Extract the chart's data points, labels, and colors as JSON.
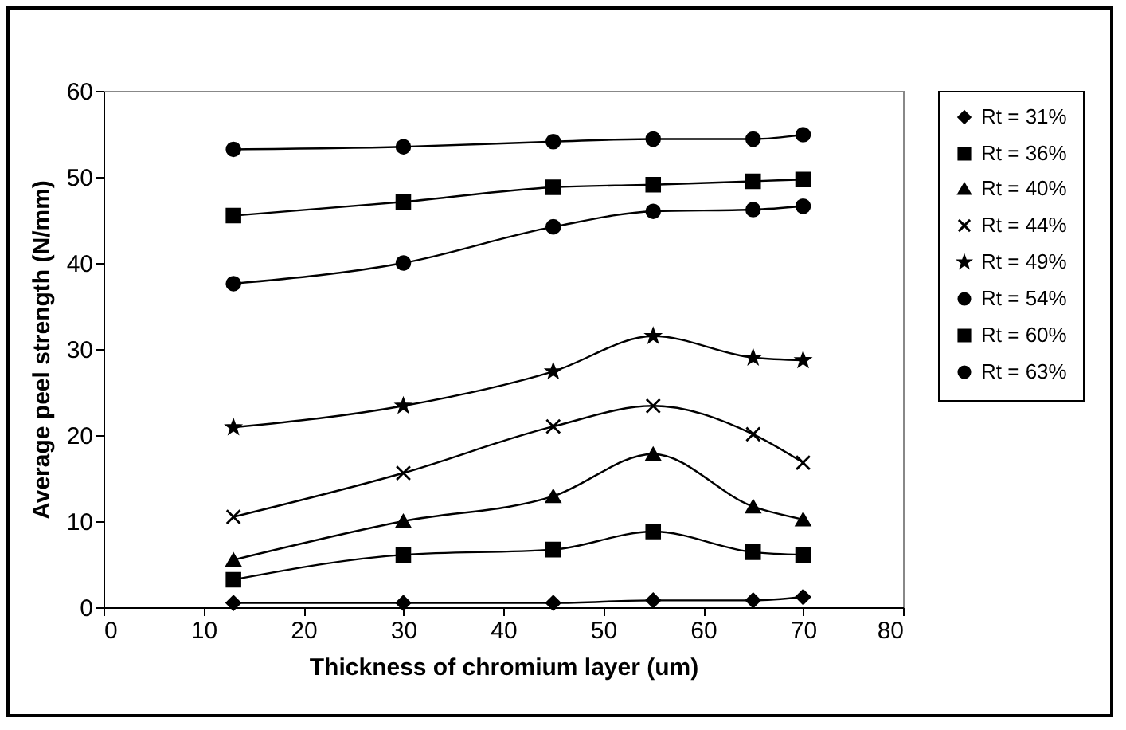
{
  "chart_data": {
    "type": "line",
    "xlabel": "Thickness of chromium layer (um)",
    "ylabel": "Average peel strength (N/mm)",
    "x": [
      13,
      30,
      45,
      55,
      65,
      70
    ],
    "xlim": [
      0,
      80
    ],
    "xticks": [
      0,
      10,
      20,
      30,
      40,
      50,
      60,
      70,
      80
    ],
    "ylim": [
      0,
      60
    ],
    "yticks": [
      0,
      10,
      20,
      30,
      40,
      50,
      60
    ],
    "grid": false,
    "legend": "right",
    "line_style": "solid",
    "series": [
      {
        "name": "Rt = 31%",
        "color": "#000000",
        "marker": "diamond",
        "values": [
          0.5,
          0.5,
          0.5,
          0.8,
          0.8,
          1.2
        ]
      },
      {
        "name": "Rt = 36%",
        "color": "#000000",
        "marker": "square",
        "values": [
          3.2,
          6.1,
          6.7,
          8.8,
          6.4,
          6.1
        ]
      },
      {
        "name": "Rt = 40%",
        "color": "#000000",
        "marker": "triangle",
        "values": [
          5.5,
          10,
          12.9,
          17.8,
          11.7,
          10.2
        ]
      },
      {
        "name": "Rt = 44%",
        "color": "#000000",
        "marker": "cross",
        "values": [
          10.5,
          15.6,
          21,
          23.4,
          20.1,
          16.8
        ]
      },
      {
        "name": "Rt = 49%",
        "color": "#000000",
        "marker": "star",
        "values": [
          20.9,
          23.4,
          27.4,
          31.5,
          29,
          28.7
        ]
      },
      {
        "name": "Rt = 54%",
        "color": "#000000",
        "marker": "circle",
        "values": [
          37.6,
          40,
          44.2,
          46,
          46.2,
          46.6
        ]
      },
      {
        "name": "Rt = 60%",
        "color": "#000000",
        "marker": "square",
        "values": [
          45.5,
          47.1,
          48.8,
          49.1,
          49.5,
          49.7
        ]
      },
      {
        "name": "Rt = 63%",
        "color": "#000000",
        "marker": "circle",
        "values": [
          53.2,
          53.5,
          54.1,
          54.4,
          54.4,
          54.9
        ]
      }
    ]
  }
}
